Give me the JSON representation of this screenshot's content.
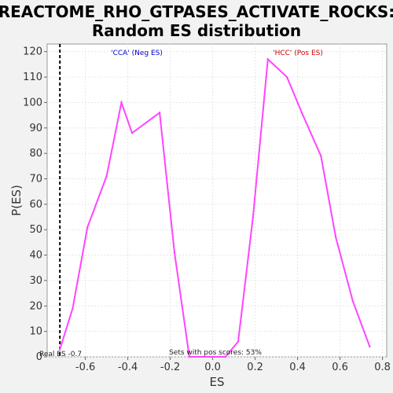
{
  "chart_data": {
    "type": "line",
    "title_line1": "REACTOME_RHO_GTPASES_ACTIVATE_ROCKS:",
    "title_line2": "Random ES distribution",
    "xlabel": "ES",
    "ylabel": "P(ES)",
    "xlim": [
      -0.78,
      0.82
    ],
    "ylim": [
      0,
      123
    ],
    "x_ticks": [
      -0.6,
      -0.4,
      -0.2,
      0.0,
      0.2,
      0.4,
      0.6,
      0.8
    ],
    "x_tick_labels": [
      "-0.6",
      "-0.4",
      "-0.2",
      "0.0",
      "0.2",
      "0.4",
      "0.6",
      "0.8"
    ],
    "y_ticks": [
      0,
      10,
      20,
      30,
      40,
      50,
      60,
      70,
      80,
      90,
      100,
      110,
      120
    ],
    "y_tick_labels": [
      "0",
      "10",
      "20",
      "30",
      "40",
      "50",
      "60",
      "70",
      "80",
      "90",
      "100",
      "110",
      "120"
    ],
    "grid": true,
    "series": [
      {
        "color": "#ff44ff",
        "x": [
          -0.72,
          -0.66,
          -0.59,
          -0.5,
          -0.43,
          -0.38,
          -0.25,
          -0.18,
          -0.11,
          0.06,
          0.12,
          0.19,
          0.26,
          0.35,
          0.42,
          0.51,
          0.58,
          0.66,
          0.74
        ],
        "y": [
          3,
          19,
          51,
          71,
          100,
          88,
          96,
          41,
          0,
          0,
          6,
          55,
          117,
          110,
          96,
          79,
          47,
          22,
          4
        ]
      }
    ],
    "real_es_value": -0.72,
    "real_es_label": "Real ES -0.7",
    "neg_label": "'CCA' (Neg ES)",
    "neg_color": "#0000cc",
    "pos_label": "'HCC' (Pos ES)",
    "pos_color": "#cc0000",
    "pos_scores_label": "Sets with pos scores: 53%"
  }
}
